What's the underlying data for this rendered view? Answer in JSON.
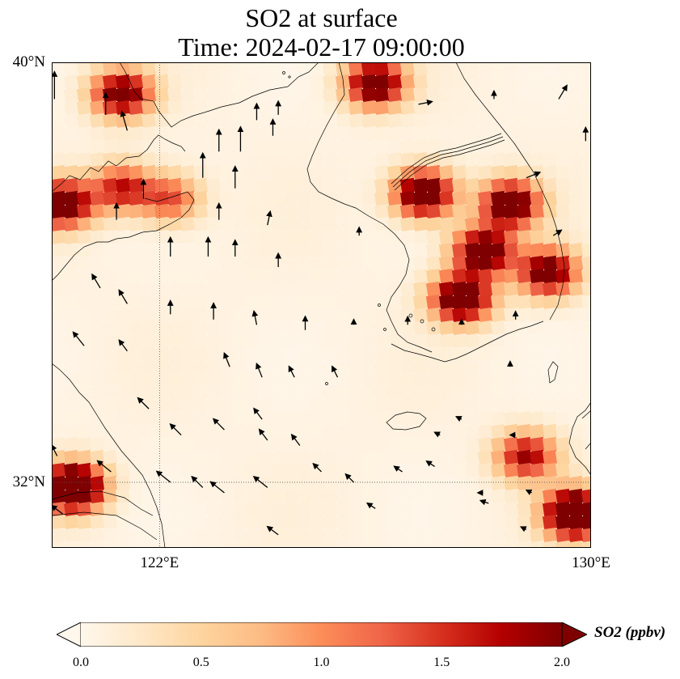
{
  "title": {
    "line1": "SO2 at surface",
    "line2": "Time: 2024-02-17 09:00:00"
  },
  "map": {
    "lat_range": [
      30.75,
      40.0
    ],
    "lon_range": [
      120.0,
      130.0
    ],
    "lat_labels": [
      {
        "value": 40,
        "text": "40°N"
      },
      {
        "value": 32,
        "text": "32°N"
      }
    ],
    "lon_labels": [
      {
        "value": 122,
        "text": "122°E"
      },
      {
        "value": 130,
        "text": "130°E"
      }
    ],
    "gridlines": {
      "lat": [
        32
      ],
      "lon": [
        122
      ],
      "style": "dotted"
    },
    "field": {
      "variable": "SO2",
      "units": "ppbv",
      "colormap": "OrRd",
      "vmin": 0.0,
      "vmax": 2.0,
      "hotspots": [
        {
          "lon": 121.3,
          "lat": 39.4,
          "value": 2.2
        },
        {
          "lon": 120.2,
          "lat": 37.3,
          "value": 2.4
        },
        {
          "lon": 121.3,
          "lat": 37.6,
          "value": 1.6
        },
        {
          "lon": 122.2,
          "lat": 37.4,
          "value": 1.3
        },
        {
          "lon": 126.0,
          "lat": 39.6,
          "value": 2.4
        },
        {
          "lon": 126.9,
          "lat": 37.5,
          "value": 2.6
        },
        {
          "lon": 128.5,
          "lat": 37.3,
          "value": 2.4
        },
        {
          "lon": 128.0,
          "lat": 36.4,
          "value": 2.4
        },
        {
          "lon": 127.6,
          "lat": 35.5,
          "value": 2.6
        },
        {
          "lon": 129.2,
          "lat": 36.0,
          "value": 2.2
        },
        {
          "lon": 120.4,
          "lat": 31.9,
          "value": 3.2
        },
        {
          "lon": 129.7,
          "lat": 31.4,
          "value": 3.2
        },
        {
          "lon": 128.8,
          "lat": 32.5,
          "value": 1.8
        }
      ]
    },
    "wind_vectors": [
      {
        "lon": 120.05,
        "lat": 39.3,
        "u": 0.0,
        "v": 1.0
      },
      {
        "lon": 121.0,
        "lat": 39.0,
        "u": 0.0,
        "v": 0.8
      },
      {
        "lon": 121.4,
        "lat": 38.7,
        "u": -0.2,
        "v": 0.7
      },
      {
        "lon": 123.1,
        "lat": 38.3,
        "u": 0.0,
        "v": 0.8
      },
      {
        "lon": 123.5,
        "lat": 38.3,
        "u": 0.0,
        "v": 0.9
      },
      {
        "lon": 123.8,
        "lat": 38.9,
        "u": 0.0,
        "v": 0.6
      },
      {
        "lon": 124.1,
        "lat": 38.6,
        "u": 0.0,
        "v": 0.6
      },
      {
        "lon": 122.8,
        "lat": 37.8,
        "u": 0.0,
        "v": 0.9
      },
      {
        "lon": 123.4,
        "lat": 37.6,
        "u": 0.0,
        "v": 0.8
      },
      {
        "lon": 121.7,
        "lat": 37.4,
        "u": 0.0,
        "v": 0.7
      },
      {
        "lon": 121.2,
        "lat": 37.0,
        "u": 0.0,
        "v": 0.6
      },
      {
        "lon": 123.1,
        "lat": 37.0,
        "u": 0.0,
        "v": 0.6
      },
      {
        "lon": 124.0,
        "lat": 36.9,
        "u": 0.1,
        "v": 0.5
      },
      {
        "lon": 125.7,
        "lat": 36.7,
        "u": 0.0,
        "v": 0.3
      },
      {
        "lon": 124.2,
        "lat": 39.0,
        "u": 0.0,
        "v": 0.5
      },
      {
        "lon": 126.8,
        "lat": 39.2,
        "u": 0.5,
        "v": 0.1
      },
      {
        "lon": 128.2,
        "lat": 39.3,
        "u": 0.0,
        "v": 0.3
      },
      {
        "lon": 129.4,
        "lat": 39.3,
        "u": 0.3,
        "v": 0.5
      },
      {
        "lon": 129.9,
        "lat": 38.5,
        "u": 0.0,
        "v": 0.5
      },
      {
        "lon": 128.8,
        "lat": 37.8,
        "u": 0.5,
        "v": 0.2
      },
      {
        "lon": 129.3,
        "lat": 36.7,
        "u": 0.3,
        "v": 0.2
      },
      {
        "lon": 122.2,
        "lat": 36.3,
        "u": 0.0,
        "v": 0.7
      },
      {
        "lon": 122.9,
        "lat": 36.3,
        "u": 0.0,
        "v": 0.7
      },
      {
        "lon": 123.4,
        "lat": 36.3,
        "u": 0.0,
        "v": 0.6
      },
      {
        "lon": 124.2,
        "lat": 36.1,
        "u": 0.0,
        "v": 0.5
      },
      {
        "lon": 120.9,
        "lat": 35.7,
        "u": -0.3,
        "v": 0.5
      },
      {
        "lon": 121.4,
        "lat": 35.4,
        "u": -0.3,
        "v": 0.5
      },
      {
        "lon": 122.2,
        "lat": 35.2,
        "u": 0.0,
        "v": 0.5
      },
      {
        "lon": 123.0,
        "lat": 35.1,
        "u": 0.0,
        "v": 0.6
      },
      {
        "lon": 123.8,
        "lat": 35.0,
        "u": -0.1,
        "v": 0.5
      },
      {
        "lon": 124.7,
        "lat": 34.9,
        "u": 0.0,
        "v": 0.5
      },
      {
        "lon": 125.6,
        "lat": 35.0,
        "u": 0.0,
        "v": 0.2
      },
      {
        "lon": 126.6,
        "lat": 35.0,
        "u": 0.0,
        "v": 0.3
      },
      {
        "lon": 127.6,
        "lat": 35.0,
        "u": 0.0,
        "v": 0.2
      },
      {
        "lon": 128.6,
        "lat": 35.1,
        "u": 0.0,
        "v": 0.3
      },
      {
        "lon": 120.6,
        "lat": 34.6,
        "u": -0.4,
        "v": 0.5
      },
      {
        "lon": 121.4,
        "lat": 34.5,
        "u": -0.3,
        "v": 0.4
      },
      {
        "lon": 123.3,
        "lat": 34.2,
        "u": -0.2,
        "v": 0.5
      },
      {
        "lon": 123.9,
        "lat": 34.0,
        "u": -0.2,
        "v": 0.5
      },
      {
        "lon": 124.5,
        "lat": 34.0,
        "u": -0.2,
        "v": 0.4
      },
      {
        "lon": 125.3,
        "lat": 34.0,
        "u": -0.2,
        "v": 0.4
      },
      {
        "lon": 128.5,
        "lat": 34.2,
        "u": 0.0,
        "v": 0.2
      },
      {
        "lon": 121.8,
        "lat": 33.4,
        "u": -0.4,
        "v": 0.4
      },
      {
        "lon": 122.4,
        "lat": 32.9,
        "u": -0.4,
        "v": 0.4
      },
      {
        "lon": 123.2,
        "lat": 33.0,
        "u": -0.4,
        "v": 0.4
      },
      {
        "lon": 123.9,
        "lat": 33.2,
        "u": -0.3,
        "v": 0.4
      },
      {
        "lon": 124.0,
        "lat": 32.8,
        "u": -0.3,
        "v": 0.4
      },
      {
        "lon": 124.6,
        "lat": 32.7,
        "u": -0.3,
        "v": 0.4
      },
      {
        "lon": 127.2,
        "lat": 32.9,
        "u": -0.2,
        "v": 0.1
      },
      {
        "lon": 127.6,
        "lat": 33.2,
        "u": -0.2,
        "v": 0.1
      },
      {
        "lon": 128.6,
        "lat": 32.9,
        "u": -0.2,
        "v": 0.0
      },
      {
        "lon": 120.1,
        "lat": 32.5,
        "u": -0.2,
        "v": 0.4
      },
      {
        "lon": 121.1,
        "lat": 32.2,
        "u": -0.5,
        "v": 0.4
      },
      {
        "lon": 122.2,
        "lat": 32.0,
        "u": -0.5,
        "v": 0.4
      },
      {
        "lon": 123.2,
        "lat": 31.8,
        "u": -0.5,
        "v": 0.4
      },
      {
        "lon": 124.0,
        "lat": 31.9,
        "u": -0.5,
        "v": 0.4
      },
      {
        "lon": 125.6,
        "lat": 32.0,
        "u": -0.3,
        "v": 0.3
      },
      {
        "lon": 126.5,
        "lat": 32.2,
        "u": -0.3,
        "v": 0.2
      },
      {
        "lon": 127.1,
        "lat": 32.3,
        "u": -0.3,
        "v": 0.2
      },
      {
        "lon": 125.0,
        "lat": 32.2,
        "u": -0.3,
        "v": 0.3
      },
      {
        "lon": 122.8,
        "lat": 31.9,
        "u": -0.4,
        "v": 0.4
      },
      {
        "lon": 126.0,
        "lat": 31.5,
        "u": -0.3,
        "v": 0.2
      },
      {
        "lon": 128.1,
        "lat": 31.6,
        "u": -0.3,
        "v": 0.1
      },
      {
        "lon": 128.9,
        "lat": 31.8,
        "u": -0.2,
        "v": 0.1
      },
      {
        "lon": 128.0,
        "lat": 31.8,
        "u": -0.2,
        "v": 0.0
      },
      {
        "lon": 120.2,
        "lat": 31.4,
        "u": -0.4,
        "v": 0.3
      },
      {
        "lon": 124.2,
        "lat": 31.0,
        "u": -0.4,
        "v": 0.3
      },
      {
        "lon": 128.8,
        "lat": 31.1,
        "u": -0.2,
        "v": 0.1
      }
    ]
  },
  "colorbar": {
    "label": "SO2 (ppbv)",
    "ticks": [
      {
        "value": 0.0,
        "text": "0.0"
      },
      {
        "value": 0.5,
        "text": "0.5"
      },
      {
        "value": 1.0,
        "text": "1.0"
      },
      {
        "value": 1.5,
        "text": "1.5"
      },
      {
        "value": 2.0,
        "text": "2.0"
      }
    ],
    "colors": [
      "#fff7ec",
      "#fee8c8",
      "#fdd49e",
      "#fdbb84",
      "#fc8d59",
      "#ef6548",
      "#d7301f",
      "#b30000",
      "#7f0000"
    ],
    "extend": "both"
  }
}
